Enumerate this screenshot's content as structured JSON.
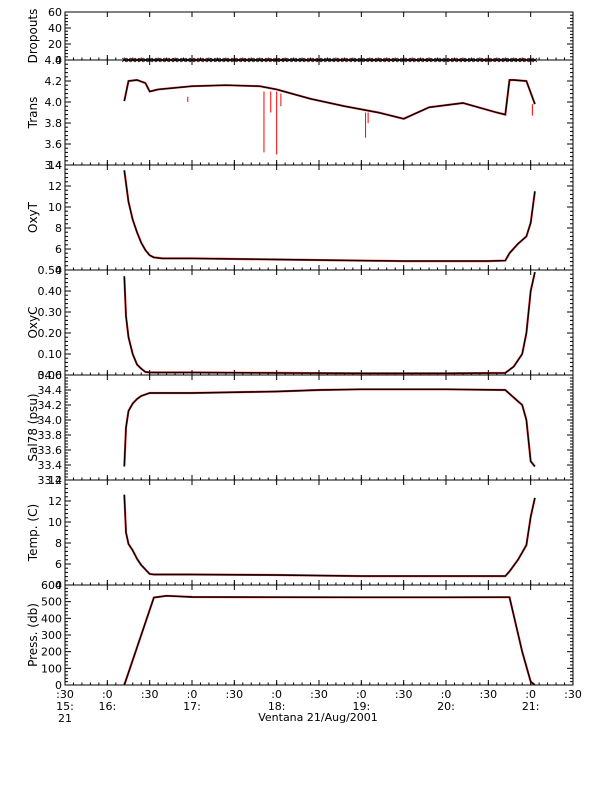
{
  "chart_data": {
    "type": "line",
    "xlabel": "Ventana 21/Aug/2001",
    "x_ticks": [
      {
        "t": 15.5,
        "line1": ":30",
        "line2": "15:",
        "line3": "21"
      },
      {
        "t": 16.0,
        "line1": ":0",
        "line2": "16:",
        "line3": ""
      },
      {
        "t": 16.5,
        "line1": ":30",
        "line2": "",
        "line3": ""
      },
      {
        "t": 17.0,
        "line1": ":0",
        "line2": "17:",
        "line3": ""
      },
      {
        "t": 17.5,
        "line1": ":30",
        "line2": "",
        "line3": ""
      },
      {
        "t": 18.0,
        "line1": ":0",
        "line2": "18:",
        "line3": ""
      },
      {
        "t": 18.5,
        "line1": ":30",
        "line2": "",
        "line3": ""
      },
      {
        "t": 19.0,
        "line1": ":0",
        "line2": "19:",
        "line3": ""
      },
      {
        "t": 19.5,
        "line1": ":30",
        "line2": "",
        "line3": ""
      },
      {
        "t": 20.0,
        "line1": ":0",
        "line2": "20:",
        "line3": ""
      },
      {
        "t": 20.5,
        "line1": ":30",
        "line2": "",
        "line3": ""
      },
      {
        "t": 21.0,
        "line1": ":0",
        "line2": "21:",
        "line3": ""
      },
      {
        "t": 21.5,
        "line1": ":30",
        "line2": "",
        "line3": ""
      }
    ],
    "xlim": [
      15.5,
      21.5
    ],
    "colors": {
      "data": "#000000",
      "raw": "#ff0000",
      "axis": "#000000"
    },
    "panels": [
      {
        "ylabel": "Dropouts",
        "ylim": [
          0,
          60
        ],
        "ticks": [
          {
            "v": 0,
            "label": "0"
          },
          {
            "v": 20,
            "label": "20"
          },
          {
            "v": 40,
            "label": "40"
          },
          {
            "v": 60,
            "label": "60"
          }
        ],
        "series": [
          {
            "x": [
              16.2,
              21.05
            ],
            "y": [
              0,
              0
            ]
          }
        ]
      },
      {
        "ylabel": "Trans",
        "ylim": [
          3.4,
          4.4
        ],
        "ticks": [
          {
            "v": 3.4,
            "label": "3.4"
          },
          {
            "v": 3.6,
            "label": "3.6"
          },
          {
            "v": 3.8,
            "label": "3.8"
          },
          {
            "v": 4.0,
            "label": "4.0"
          },
          {
            "v": 4.2,
            "label": "4.2"
          },
          {
            "v": 4.4,
            "label": "4.4"
          }
        ],
        "series": [
          {
            "x": [
              16.2,
              16.25,
              16.35,
              16.45,
              16.5,
              16.6,
              17.0,
              17.4,
              17.8,
              18.0,
              18.4,
              18.8,
              19.2,
              19.5,
              19.8,
              20.2,
              20.6,
              20.7,
              20.75,
              20.8,
              20.95,
              21.05
            ],
            "y": [
              4.01,
              4.2,
              4.21,
              4.18,
              4.1,
              4.12,
              4.15,
              4.16,
              4.15,
              4.12,
              4.03,
              3.96,
              3.9,
              3.84,
              3.95,
              3.99,
              3.9,
              3.88,
              4.21,
              4.21,
              4.2,
              3.98
            ]
          }
        ],
        "spikes": [
          {
            "x": 16.95,
            "y0": 4.05,
            "y1": 4.0
          },
          {
            "x": 17.85,
            "y0": 4.1,
            "y1": 3.52
          },
          {
            "x": 17.93,
            "y0": 4.1,
            "y1": 3.9
          },
          {
            "x": 18.0,
            "y0": 4.1,
            "y1": 3.5
          },
          {
            "x": 18.05,
            "y0": 4.08,
            "y1": 3.96
          },
          {
            "x": 19.05,
            "y0": 3.9,
            "y1": 3.66
          },
          {
            "x": 19.08,
            "y0": 3.9,
            "y1": 3.8
          },
          {
            "x": 21.02,
            "y0": 3.98,
            "y1": 3.87
          }
        ]
      },
      {
        "ylabel": "OxyT",
        "ylim": [
          4,
          14
        ],
        "ticks": [
          {
            "v": 4,
            "label": "4"
          },
          {
            "v": 6,
            "label": "6"
          },
          {
            "v": 8,
            "label": "8"
          },
          {
            "v": 10,
            "label": "10"
          },
          {
            "v": 12,
            "label": "12"
          },
          {
            "v": 14,
            "label": "14"
          }
        ],
        "series": [
          {
            "x": [
              16.2,
              16.25,
              16.3,
              16.35,
              16.4,
              16.45,
              16.5,
              16.55,
              16.6,
              16.65,
              17.0,
              18.0,
              19.0,
              19.5,
              20.0,
              20.5,
              20.7,
              20.75,
              20.85,
              20.95,
              21.0,
              21.05
            ],
            "y": [
              13.5,
              10.5,
              8.8,
              7.6,
              6.6,
              5.9,
              5.4,
              5.2,
              5.15,
              5.1,
              5.1,
              5.0,
              4.9,
              4.85,
              4.85,
              4.85,
              4.9,
              5.6,
              6.5,
              7.2,
              8.5,
              11.5
            ]
          }
        ]
      },
      {
        "ylabel": "OxyC",
        "ylim": [
          0,
          0.5
        ],
        "ticks": [
          {
            "v": 0.0,
            "label": "0.00"
          },
          {
            "v": 0.1,
            "label": "0.10"
          },
          {
            "v": 0.2,
            "label": "0.20"
          },
          {
            "v": 0.3,
            "label": "0.30"
          },
          {
            "v": 0.4,
            "label": "0.40"
          },
          {
            "v": 0.5,
            "label": "0.50"
          }
        ],
        "series": [
          {
            "x": [
              16.2,
              16.22,
              16.25,
              16.3,
              16.35,
              16.4,
              16.45,
              16.5,
              17.0,
              18.0,
              19.0,
              20.0,
              20.7,
              20.8,
              20.9,
              20.95,
              21.0,
              21.05
            ],
            "y": [
              0.47,
              0.28,
              0.18,
              0.1,
              0.05,
              0.03,
              0.015,
              0.012,
              0.012,
              0.01,
              0.008,
              0.008,
              0.01,
              0.04,
              0.1,
              0.2,
              0.4,
              0.49
            ]
          }
        ]
      },
      {
        "ylabel": "Sal78 (psu)",
        "ylim": [
          33.2,
          34.6
        ],
        "ticks": [
          {
            "v": 33.2,
            "label": "33.2"
          },
          {
            "v": 33.4,
            "label": "33.4"
          },
          {
            "v": 33.6,
            "label": "33.6"
          },
          {
            "v": 33.8,
            "label": "33.8"
          },
          {
            "v": 34.0,
            "label": "34.0"
          },
          {
            "v": 34.2,
            "label": "34.2"
          },
          {
            "v": 34.4,
            "label": "34.4"
          },
          {
            "v": 34.6,
            "label": "34.6"
          }
        ],
        "series": [
          {
            "x": [
              16.2,
              16.22,
              16.25,
              16.3,
              16.35,
              16.4,
              16.5,
              17.0,
              18.0,
              18.5,
              19.0,
              20.0,
              20.7,
              20.8,
              20.9,
              20.95,
              21.0,
              21.05
            ],
            "y": [
              33.38,
              33.9,
              34.12,
              34.22,
              34.28,
              34.32,
              34.36,
              34.36,
              34.38,
              34.4,
              34.41,
              34.41,
              34.4,
              34.3,
              34.2,
              34.0,
              33.45,
              33.38
            ]
          }
        ]
      },
      {
        "ylabel": "Temp. (C)",
        "ylim": [
          4,
          14
        ],
        "ticks": [
          {
            "v": 4,
            "label": "4"
          },
          {
            "v": 6,
            "label": "6"
          },
          {
            "v": 8,
            "label": "8"
          },
          {
            "v": 10,
            "label": "10"
          },
          {
            "v": 12,
            "label": "12"
          },
          {
            "v": 14,
            "label": "14"
          }
        ],
        "series": [
          {
            "x": [
              16.2,
              16.22,
              16.25,
              16.3,
              16.35,
              16.4,
              16.5,
              16.55,
              17.0,
              18.0,
              19.0,
              20.0,
              20.7,
              20.75,
              20.85,
              20.95,
              21.0,
              21.05
            ],
            "y": [
              12.6,
              9.0,
              7.9,
              7.3,
              6.5,
              5.9,
              5.05,
              5.0,
              5.0,
              4.95,
              4.85,
              4.85,
              4.85,
              5.3,
              6.4,
              7.8,
              10.5,
              12.3
            ]
          }
        ]
      },
      {
        "ylabel": "Press. (db)",
        "ylim": [
          0,
          600
        ],
        "ticks": [
          {
            "v": 0,
            "label": "0"
          },
          {
            "v": 100,
            "label": "100"
          },
          {
            "v": 200,
            "label": "200"
          },
          {
            "v": 300,
            "label": "300"
          },
          {
            "v": 400,
            "label": "400"
          },
          {
            "v": 500,
            "label": "500"
          },
          {
            "v": 600,
            "label": "600"
          }
        ],
        "series": [
          {
            "x": [
              16.2,
              16.55,
              16.7,
              17.0,
              18.0,
              19.0,
              20.0,
              20.6,
              20.75,
              20.9,
              21.0,
              21.05
            ],
            "y": [
              0,
              525,
              535,
              528,
              527,
              526,
              526,
              527,
              527,
              200,
              20,
              0
            ]
          }
        ]
      }
    ]
  }
}
